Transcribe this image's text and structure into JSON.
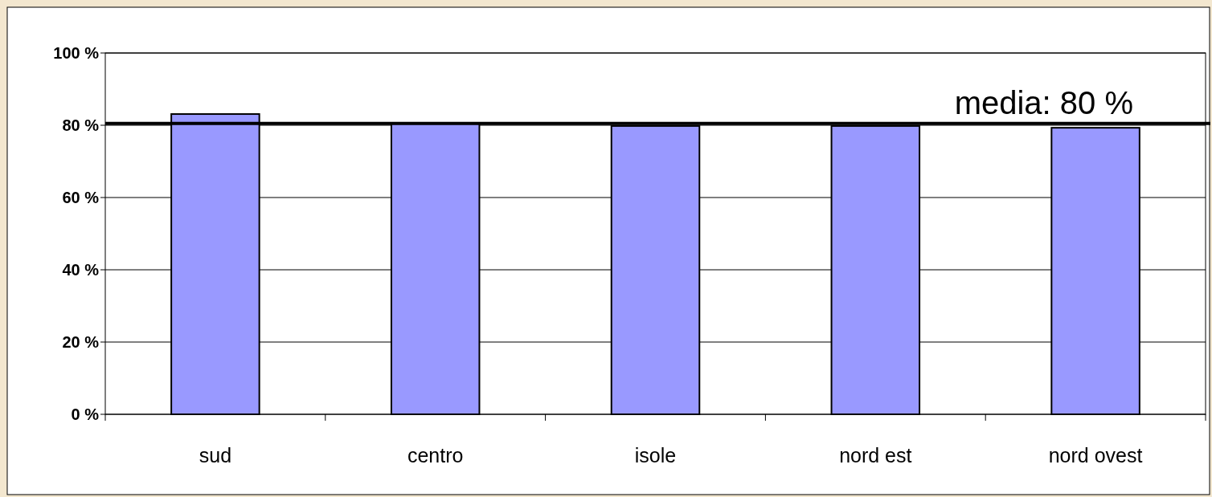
{
  "chart_data": {
    "type": "bar",
    "categories": [
      "sud",
      "centro",
      "isole",
      "nord est",
      "nord ovest"
    ],
    "values": [
      83.1,
      80.5,
      79.8,
      79.8,
      79.3
    ],
    "color": "#9999ff",
    "ylim": [
      0,
      100
    ],
    "yticks": [
      {
        "value": 0,
        "label": "0 %"
      },
      {
        "value": 20,
        "label": "20 %"
      },
      {
        "value": 40,
        "label": "40 %"
      },
      {
        "value": 60,
        "label": "60 %"
      },
      {
        "value": 80,
        "label": "80 %"
      },
      {
        "value": 100,
        "label": "100 %"
      }
    ],
    "grid": "y",
    "ref_lines": [
      {
        "axis": "y",
        "value": 80.5,
        "label": "media: 80 %",
        "color": "#000000"
      }
    ]
  }
}
